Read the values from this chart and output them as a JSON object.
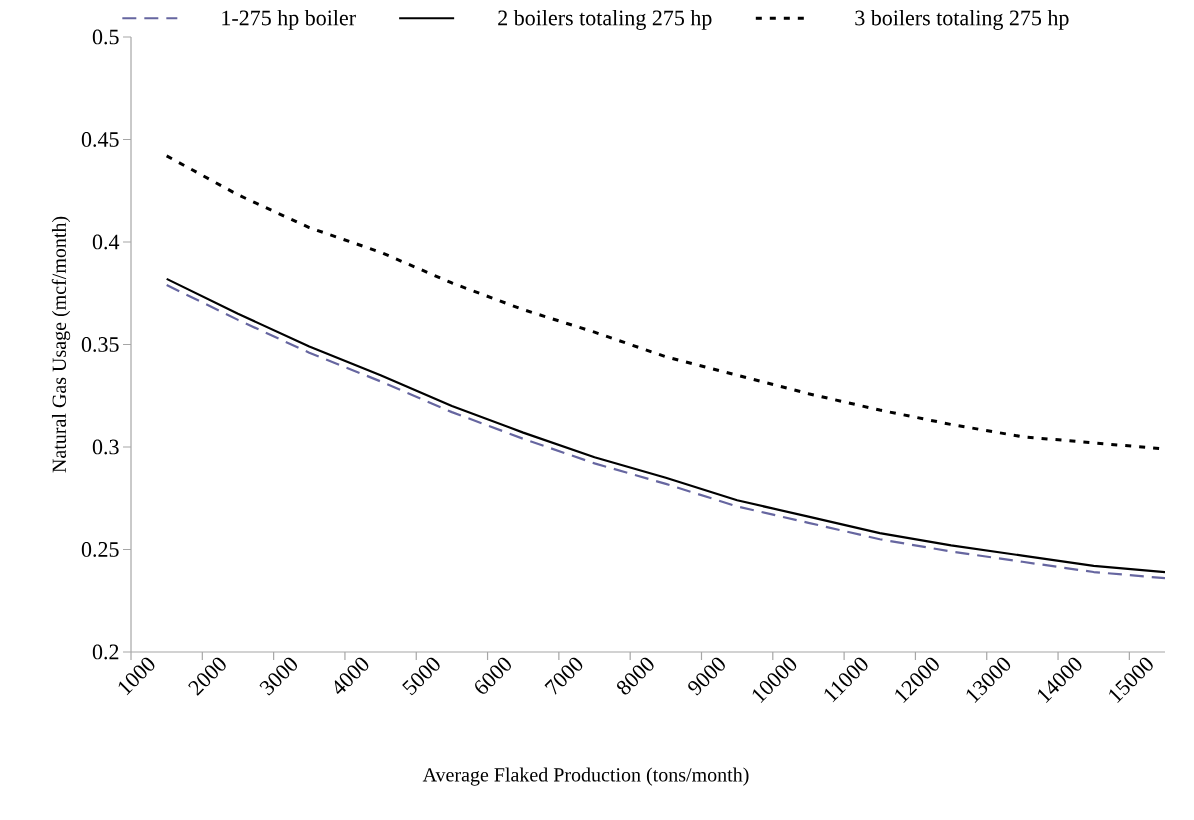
{
  "chart_data": {
    "type": "line",
    "xlabel": "Average Flaked Production  (tons/month)",
    "ylabel": "Natural Gas Usage (mcf/month)",
    "x": [
      1500,
      2500,
      3500,
      4500,
      5500,
      6500,
      7500,
      8500,
      9500,
      10500,
      11500,
      12500,
      13500,
      14500,
      15500
    ],
    "series": [
      {
        "name": "1-275 hp boiler",
        "color": "#6666a0",
        "line_style": "dashed",
        "values": [
          0.379,
          0.362,
          0.346,
          0.332,
          0.317,
          0.304,
          0.292,
          0.282,
          0.271,
          0.263,
          0.255,
          0.249,
          0.244,
          0.239,
          0.236
        ]
      },
      {
        "name": "2 boilers totaling 275 hp",
        "color": "#000000",
        "line_style": "solid",
        "values": [
          0.382,
          0.365,
          0.349,
          0.335,
          0.32,
          0.307,
          0.295,
          0.285,
          0.274,
          0.266,
          0.258,
          0.252,
          0.247,
          0.242,
          0.239
        ]
      },
      {
        "name": "3 boilers totaling 275 hp",
        "color": "#000000",
        "line_style": "dotted",
        "values": [
          0.442,
          0.423,
          0.407,
          0.395,
          0.38,
          0.367,
          0.356,
          0.344,
          0.335,
          0.326,
          0.318,
          0.311,
          0.305,
          0.302,
          0.299
        ]
      }
    ],
    "xlim": [
      1000,
      15500
    ],
    "ylim": [
      0.2,
      0.5
    ],
    "xticks": [
      1000,
      2000,
      3000,
      4000,
      5000,
      6000,
      7000,
      8000,
      9000,
      10000,
      11000,
      12000,
      13000,
      14000,
      15000
    ],
    "yticks": [
      0.2,
      0.25,
      0.3,
      0.35,
      0.4,
      0.45,
      0.5
    ],
    "legend": "top",
    "grid": false,
    "marker": "none"
  }
}
